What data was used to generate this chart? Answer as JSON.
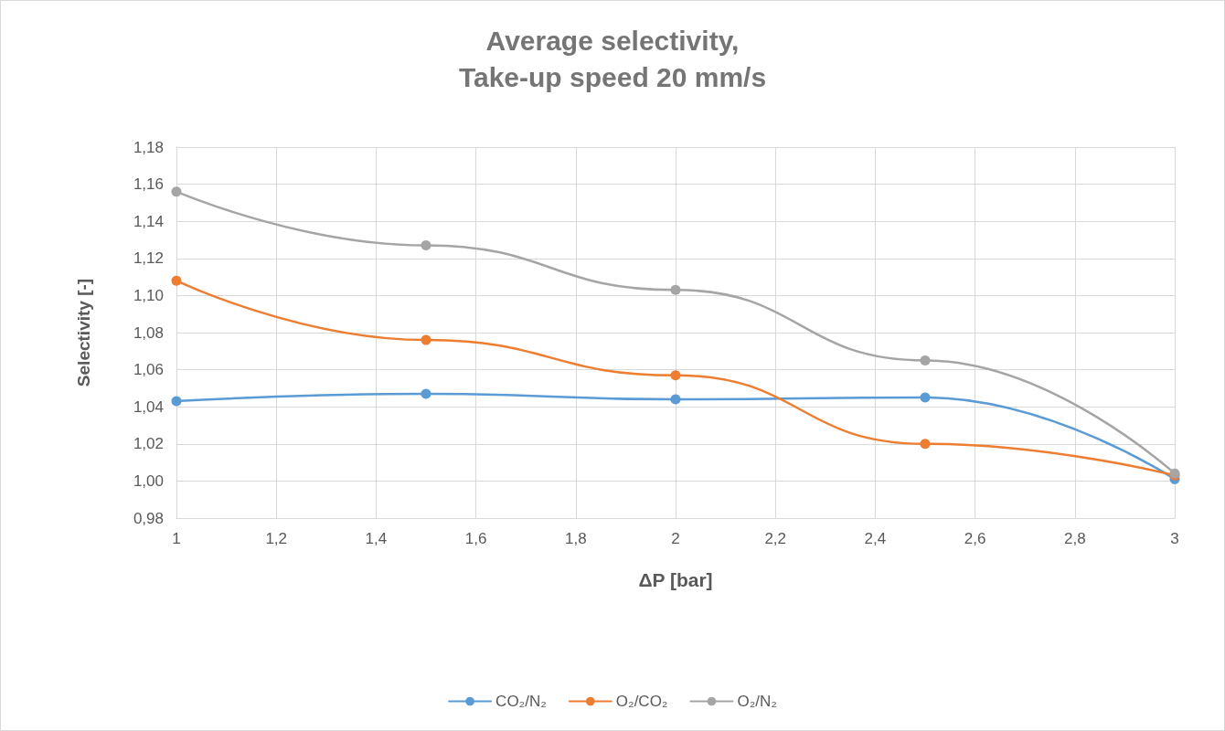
{
  "chart_data": {
    "type": "line",
    "title": "Average selectivity,\nTake-up speed 20 mm/s",
    "xlabel": "ΔP [bar]",
    "ylabel": "Selectivity [-]",
    "x": [
      1,
      1.5,
      2,
      2.5,
      3
    ],
    "series": [
      {
        "name": "CO₂/N₂",
        "color": "#5b9bd5",
        "values": [
          1.043,
          1.047,
          1.044,
          1.045,
          1.001
        ]
      },
      {
        "name": "O₂/CO₂",
        "color": "#ed7d31",
        "values": [
          1.108,
          1.076,
          1.057,
          1.02,
          1.003
        ]
      },
      {
        "name": "O₂/N₂",
        "color": "#a5a5a5",
        "values": [
          1.156,
          1.127,
          1.103,
          1.065,
          1.004
        ]
      }
    ],
    "xlim": [
      1,
      3
    ],
    "xticks": [
      1,
      {
        "value": 1.2,
        "label": "1,2"
      },
      {
        "value": 1.4,
        "label": "1,4"
      },
      {
        "value": 1.6,
        "label": "1,6"
      },
      {
        "value": 1.8,
        "label": "1,8"
      },
      2,
      {
        "value": 2.2,
        "label": "2,2"
      },
      {
        "value": 2.4,
        "label": "2,4"
      },
      {
        "value": 2.6,
        "label": "2,6"
      },
      {
        "value": 2.8,
        "label": "2,8"
      },
      3
    ],
    "ylim": [
      0.98,
      1.18
    ],
    "yticks": [
      {
        "value": 0.98,
        "label": "0,98"
      },
      {
        "value": 1,
        "label": "1,00"
      },
      {
        "value": 1.02,
        "label": "1,02"
      },
      {
        "value": 1.04,
        "label": "1,04"
      },
      {
        "value": 1.06,
        "label": "1,06"
      },
      {
        "value": 1.08,
        "label": "1,08"
      },
      {
        "value": 1.1,
        "label": "1,10"
      },
      {
        "value": 1.12,
        "label": "1,12"
      },
      {
        "value": 1.14,
        "label": "1,14"
      },
      {
        "value": 1.16,
        "label": "1,16"
      },
      {
        "value": 1.18,
        "label": "1,18"
      }
    ],
    "grid": true,
    "legend": "bottom",
    "marker": "circle",
    "line_style": "solid"
  }
}
